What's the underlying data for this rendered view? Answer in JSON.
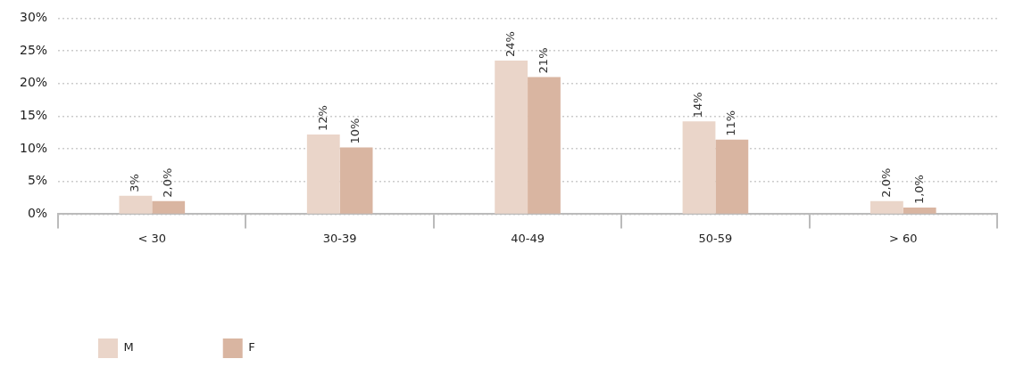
{
  "chart_data": {
    "type": "bar",
    "categories": [
      "< 30",
      "30-39",
      "40-49",
      "50-59",
      "> 60"
    ],
    "series": [
      {
        "name": "M",
        "color": "#ead5c9",
        "values": [
          2.8,
          12.2,
          23.5,
          14.2,
          2.0
        ],
        "value_labels": [
          "3%",
          "12%",
          "24%",
          "14%",
          "2,0%"
        ]
      },
      {
        "name": "F",
        "color": "#d9b5a1",
        "values": [
          2.0,
          10.2,
          21,
          11.4,
          1.0
        ],
        "value_labels": [
          "2,0%",
          "10%",
          "21%",
          "11%",
          "1,0%"
        ]
      }
    ],
    "ylim": [
      0,
      30
    ],
    "yticks": [
      {
        "value": 0,
        "label": "0%"
      },
      {
        "value": 5,
        "label": "5%"
      },
      {
        "value": 10,
        "label": "10%"
      },
      {
        "value": 15,
        "label": "15%"
      },
      {
        "value": 20,
        "label": "20%"
      },
      {
        "value": 25,
        "label": "25%"
      },
      {
        "value": 30,
        "label": "30%"
      }
    ],
    "grid": "y",
    "legend": "bottom left"
  }
}
